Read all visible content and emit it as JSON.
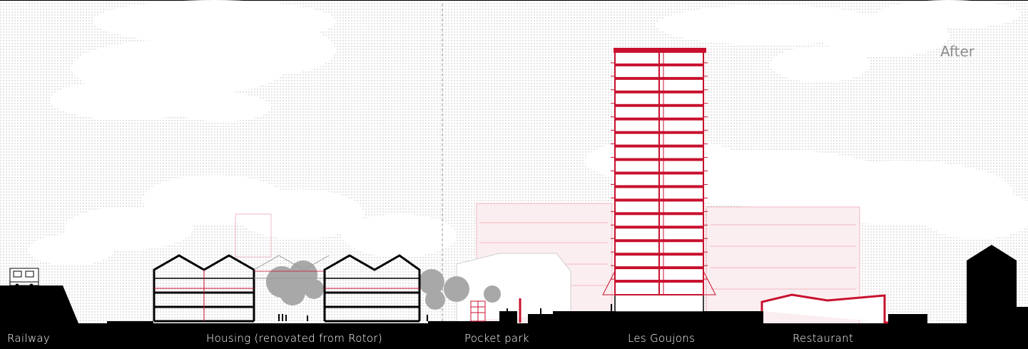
{
  "diagram": {
    "type": "urban-section-elevation",
    "state_label": "After",
    "labels": {
      "railway": "Railway",
      "housing": "Housing (renovated from Rotor)",
      "pocket_park": "Pocket park",
      "tower": "Les Goujons",
      "restaurant": "Restaurant"
    },
    "colors": {
      "accent_red": "#c8102e",
      "ground": "#000000",
      "sky_dots": "#b8b8b8",
      "ghost_red": "#f0b8c0",
      "tree_grey": "#a8a8a8"
    },
    "tower_floor_count": 18
  }
}
